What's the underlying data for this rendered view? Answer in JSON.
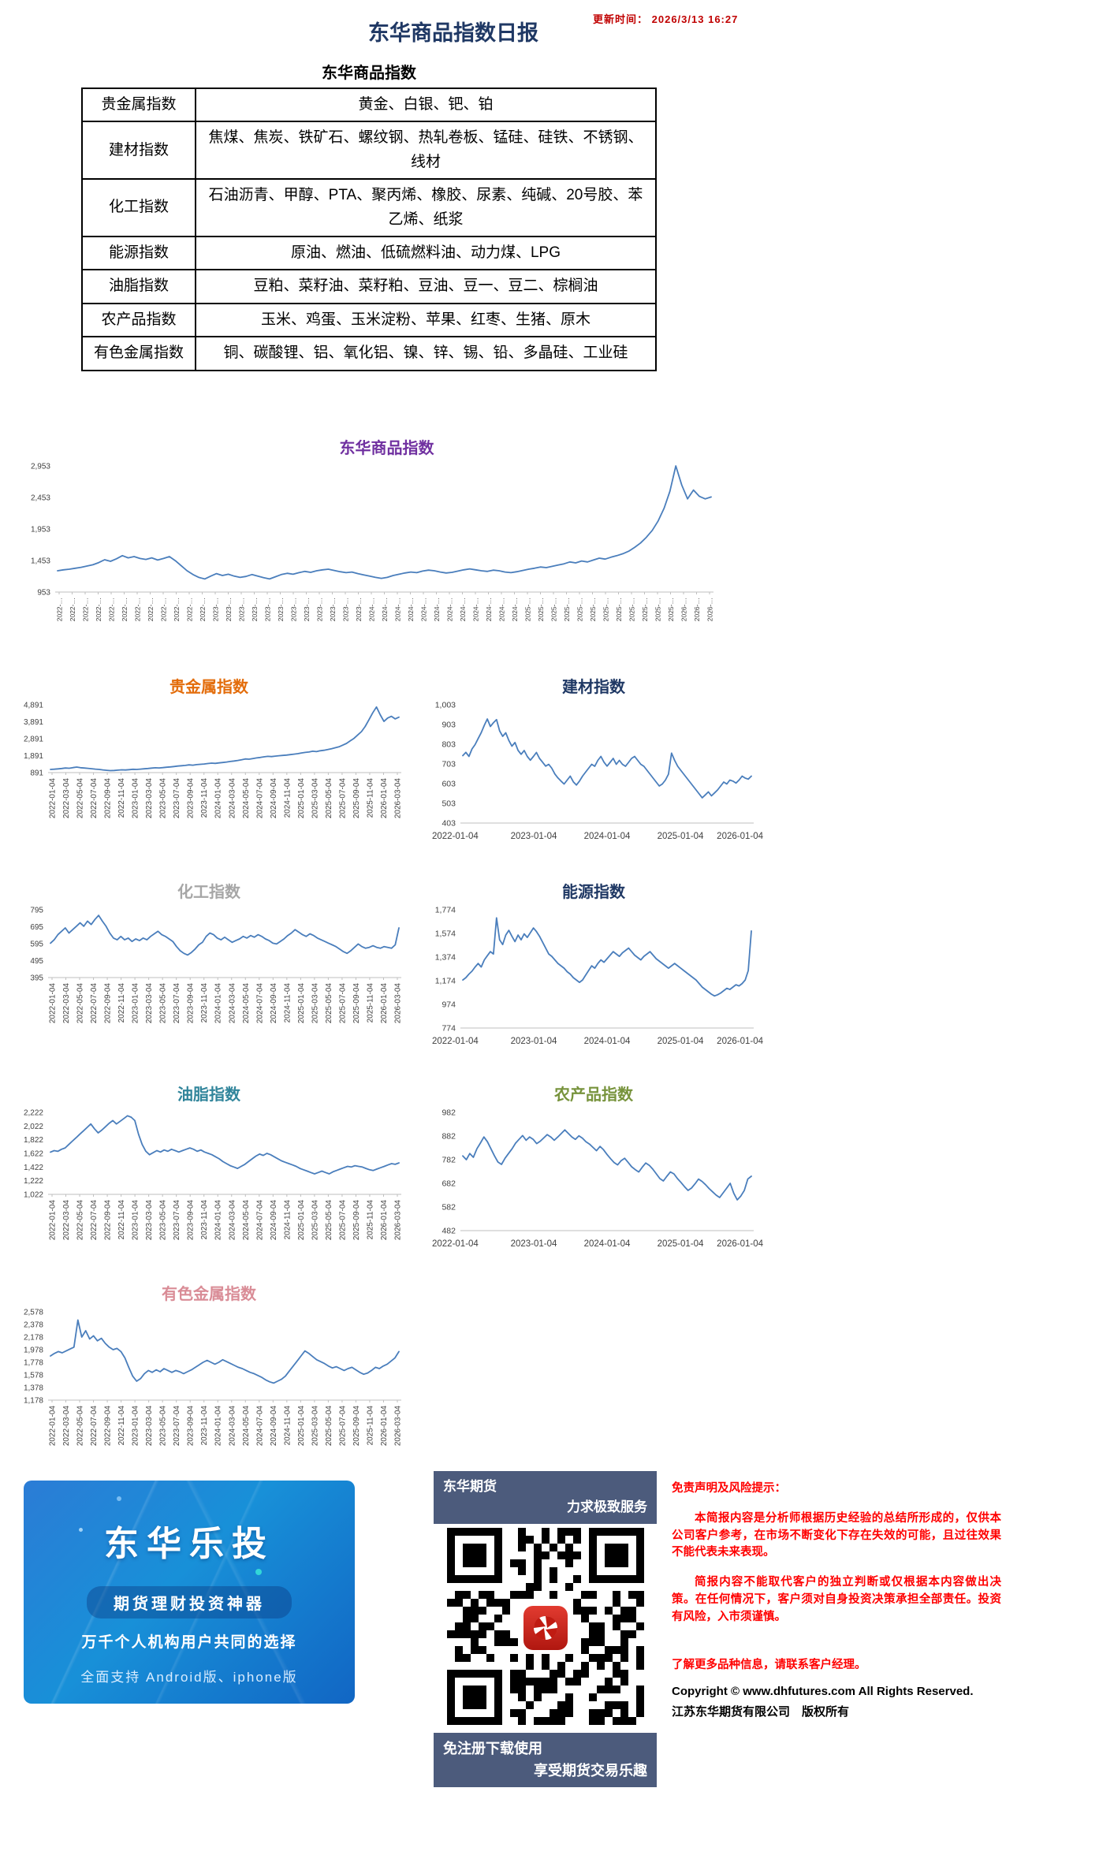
{
  "header": {
    "update_label": "更新时间：",
    "update_value": "2026/3/13 16:27",
    "title": "东华商品指数日报"
  },
  "table": {
    "title": "东华商品指数",
    "rows": [
      {
        "label": "贵金属指数",
        "items": "黄金、白银、钯、铂"
      },
      {
        "label": "建材指数",
        "items": "焦煤、焦炭、铁矿石、螺纹钢、热轧卷板、锰硅、硅铁、不锈钢、线材"
      },
      {
        "label": "化工指数",
        "items": "石油沥青、甲醇、PTA、聚丙烯、橡胶、尿素、纯碱、20号胶、苯乙烯、纸浆"
      },
      {
        "label": "能源指数",
        "items": "原油、燃油、低硫燃料油、动力煤、LPG"
      },
      {
        "label": "油脂指数",
        "items": "豆粕、菜籽油、菜籽粕、豆油、豆一、豆二、棕榈油"
      },
      {
        "label": "农产品指数",
        "items": "玉米、鸡蛋、玉米淀粉、苹果、红枣、生猪、原木"
      },
      {
        "label": "有色金属指数",
        "items": "铜、碳酸锂、铝、氧化铝、镍、锌、锡、铅、多晶硅、工业硅"
      }
    ]
  },
  "x_axis_presets": {
    "main51": [
      "2022-…",
      "2022-…",
      "2022-…",
      "2022-…",
      "2022-…",
      "2022-…",
      "2022-…",
      "2022-…",
      "2022-…",
      "2022-…",
      "2022-…",
      "2022-…",
      "2023-…",
      "2023-…",
      "2023-…",
      "2023-…",
      "2023-…",
      "2023-…",
      "2023-…",
      "2023-…",
      "2023-…",
      "2023-…",
      "2023-…",
      "2023-…",
      "2024-…",
      "2024-…",
      "2024-…",
      "2024-…",
      "2024-…",
      "2024-…",
      "2024-…",
      "2024-…",
      "2024-…",
      "2024-…",
      "2024-…",
      "2024-…",
      "2025-…",
      "2025-…",
      "2025-…",
      "2025-…",
      "2025-…",
      "2025-…",
      "2025-…",
      "2025-…",
      "2025-…",
      "2025-…",
      "2025-…",
      "2025-…",
      "2026-…",
      "2026-…",
      "2026-…"
    ],
    "left26": [
      "2022-01-04",
      "2022-03-04",
      "2022-05-04",
      "2022-07-04",
      "2022-09-04",
      "2022-11-04",
      "2023-01-04",
      "2023-03-04",
      "2023-05-04",
      "2023-07-04",
      "2023-09-04",
      "2023-11-04",
      "2024-01-04",
      "2024-03-04",
      "2024-05-04",
      "2024-07-04",
      "2024-09-04",
      "2024-11-04",
      "2025-01-04",
      "2025-03-04",
      "2025-05-04",
      "2025-07-04",
      "2025-09-04",
      "2025-11-04",
      "2026-01-04",
      "2026-03-04"
    ],
    "right5": [
      "2022-01-04",
      "2023-01-04",
      "2024-01-04",
      "2025-01-04",
      "2026-01-04"
    ]
  },
  "chart_data": [
    {
      "key": "main",
      "type": "line",
      "title": "东华商品指数",
      "title_color": "#7030A0",
      "line_color": "#4a7ebc",
      "xlabel": "",
      "ylabel": "",
      "grid": false,
      "legend": "none",
      "y_ticks": [
        "2,953",
        "2,453",
        "1,953",
        "1,453",
        "953"
      ],
      "y_min": 953,
      "y_max": 2953,
      "x_label_mode": "rotated",
      "x_labels_ref": "main51",
      "values": [
        1290,
        1305,
        1315,
        1330,
        1345,
        1365,
        1385,
        1420,
        1465,
        1440,
        1480,
        1530,
        1495,
        1515,
        1485,
        1470,
        1495,
        1460,
        1485,
        1515,
        1450,
        1370,
        1290,
        1230,
        1185,
        1160,
        1205,
        1245,
        1215,
        1235,
        1205,
        1185,
        1200,
        1230,
        1205,
        1180,
        1160,
        1195,
        1230,
        1250,
        1235,
        1260,
        1280,
        1265,
        1290,
        1305,
        1315,
        1295,
        1275,
        1260,
        1270,
        1245,
        1225,
        1205,
        1185,
        1170,
        1185,
        1215,
        1235,
        1255,
        1270,
        1260,
        1285,
        1300,
        1290,
        1270,
        1255,
        1265,
        1285,
        1305,
        1320,
        1305,
        1290,
        1280,
        1300,
        1290,
        1270,
        1260,
        1275,
        1295,
        1315,
        1330,
        1350,
        1340,
        1360,
        1380,
        1400,
        1430,
        1415,
        1445,
        1430,
        1460,
        1490,
        1475,
        1505,
        1530,
        1560,
        1600,
        1660,
        1730,
        1820,
        1930,
        2080,
        2280,
        2550,
        2953,
        2650,
        2430,
        2570,
        2470,
        2430,
        2460
      ]
    },
    {
      "key": "precious",
      "type": "line",
      "title": "贵金属指数",
      "title_color": "#E36C0A",
      "line_color": "#4a7ebc",
      "y_ticks": [
        "4,891",
        "3,891",
        "2,891",
        "1,891",
        "891"
      ],
      "y_min": 891,
      "y_max": 4891,
      "x_label_mode": "rotated",
      "x_labels_ref": "left26",
      "values": [
        1075,
        1090,
        1110,
        1135,
        1160,
        1145,
        1185,
        1215,
        1180,
        1160,
        1140,
        1120,
        1095,
        1075,
        1050,
        1025,
        1005,
        1015,
        1035,
        1055,
        1045,
        1065,
        1085,
        1075,
        1095,
        1115,
        1135,
        1155,
        1175,
        1165,
        1185,
        1205,
        1225,
        1250,
        1275,
        1295,
        1315,
        1345,
        1330,
        1360,
        1380,
        1400,
        1425,
        1450,
        1435,
        1465,
        1485,
        1515,
        1545,
        1575,
        1605,
        1650,
        1695,
        1680,
        1720,
        1755,
        1785,
        1820,
        1850,
        1835,
        1865,
        1885,
        1905,
        1925,
        1950,
        1980,
        2005,
        2050,
        2080,
        2105,
        2150,
        2130,
        2180,
        2205,
        2250,
        2300,
        2355,
        2410,
        2510,
        2610,
        2760,
        2910,
        3110,
        3310,
        3610,
        4010,
        4410,
        4760,
        4310,
        3910,
        4110,
        4210,
        4060,
        4160
      ]
    },
    {
      "key": "building",
      "type": "line",
      "title": "建材指数",
      "title_color": "#1F3864",
      "line_color": "#4a7ebc",
      "y_ticks": [
        "1,003",
        "903",
        "803",
        "703",
        "603",
        "503",
        "403"
      ],
      "y_min": 403,
      "y_max": 1003,
      "x_label_mode": "horizontal",
      "x_labels_ref": "right5",
      "values": [
        745,
        762,
        741,
        779,
        801,
        832,
        862,
        899,
        931,
        893,
        912,
        928,
        871,
        843,
        861,
        822,
        793,
        812,
        772,
        752,
        771,
        741,
        722,
        741,
        761,
        731,
        712,
        692,
        701,
        681,
        652,
        632,
        616,
        601,
        621,
        641,
        612,
        596,
        616,
        641,
        661,
        681,
        701,
        691,
        721,
        741,
        712,
        692,
        711,
        731,
        701,
        721,
        701,
        691,
        711,
        731,
        741,
        721,
        701,
        691,
        671,
        651,
        631,
        611,
        591,
        601,
        621,
        651,
        758,
        721,
        691,
        671,
        651,
        631,
        611,
        591,
        571,
        551,
        531,
        546,
        561,
        541,
        556,
        571,
        591,
        611,
        601,
        621,
        616,
        606,
        621,
        641,
        631,
        626,
        641
      ]
    },
    {
      "key": "chemical",
      "type": "line",
      "title": "化工指数",
      "title_color": "#A6A6A6",
      "line_color": "#4a7ebc",
      "y_ticks": [
        "795",
        "695",
        "595",
        "495",
        "395"
      ],
      "y_min": 395,
      "y_max": 795,
      "x_label_mode": "rotated",
      "x_labels_ref": "left26",
      "values": [
        598,
        618,
        648,
        668,
        688,
        658,
        678,
        698,
        718,
        698,
        728,
        708,
        738,
        762,
        728,
        698,
        658,
        628,
        618,
        638,
        618,
        628,
        608,
        623,
        613,
        628,
        618,
        638,
        653,
        668,
        648,
        638,
        623,
        608,
        578,
        553,
        538,
        528,
        543,
        563,
        588,
        603,
        638,
        658,
        648,
        628,
        618,
        633,
        618,
        603,
        613,
        623,
        638,
        628,
        643,
        633,
        648,
        638,
        623,
        613,
        598,
        593,
        608,
        623,
        643,
        658,
        678,
        663,
        648,
        638,
        653,
        643,
        628,
        618,
        608,
        598,
        588,
        578,
        563,
        548,
        538,
        553,
        573,
        593,
        578,
        568,
        573,
        583,
        573,
        568,
        578,
        573,
        568,
        588,
        688
      ]
    },
    {
      "key": "energy",
      "type": "line",
      "title": "能源指数",
      "title_color": "#1F3864",
      "line_color": "#4a7ebc",
      "y_ticks": [
        "1,774",
        "1,574",
        "1,374",
        "1,174",
        "974",
        "774"
      ],
      "y_min": 774,
      "y_max": 1774,
      "x_label_mode": "horizontal",
      "x_labels_ref": "right5",
      "values": [
        1180,
        1200,
        1230,
        1255,
        1290,
        1320,
        1290,
        1350,
        1385,
        1420,
        1400,
        1705,
        1520,
        1480,
        1560,
        1600,
        1550,
        1505,
        1560,
        1520,
        1570,
        1540,
        1580,
        1620,
        1590,
        1550,
        1500,
        1450,
        1400,
        1380,
        1350,
        1320,
        1300,
        1280,
        1250,
        1230,
        1200,
        1180,
        1160,
        1180,
        1220,
        1260,
        1300,
        1280,
        1320,
        1350,
        1330,
        1360,
        1390,
        1420,
        1400,
        1380,
        1410,
        1430,
        1450,
        1420,
        1390,
        1370,
        1350,
        1380,
        1400,
        1420,
        1390,
        1360,
        1340,
        1320,
        1300,
        1280,
        1300,
        1320,
        1300,
        1280,
        1260,
        1240,
        1220,
        1200,
        1180,
        1150,
        1120,
        1100,
        1080,
        1060,
        1045,
        1055,
        1070,
        1090,
        1110,
        1100,
        1120,
        1140,
        1130,
        1150,
        1180,
        1260,
        1595
      ]
    },
    {
      "key": "oils",
      "type": "line",
      "title": "油脂指数",
      "title_color": "#31859B",
      "line_color": "#4a7ebc",
      "y_ticks": [
        "2,222",
        "2,022",
        "1,822",
        "1,622",
        "1,422",
        "1,222",
        "1,022"
      ],
      "y_min": 1022,
      "y_max": 2222,
      "x_label_mode": "rotated",
      "x_labels_ref": "left26",
      "values": [
        1640,
        1662,
        1652,
        1682,
        1702,
        1752,
        1802,
        1852,
        1902,
        1952,
        2002,
        2052,
        1982,
        1922,
        1962,
        2012,
        2062,
        2102,
        2052,
        2092,
        2132,
        2172,
        2152,
        2102,
        1902,
        1752,
        1652,
        1602,
        1632,
        1662,
        1642,
        1672,
        1652,
        1682,
        1662,
        1642,
        1662,
        1682,
        1702,
        1682,
        1652,
        1672,
        1642,
        1622,
        1602,
        1572,
        1542,
        1502,
        1472,
        1442,
        1422,
        1402,
        1432,
        1462,
        1502,
        1542,
        1582,
        1612,
        1592,
        1622,
        1602,
        1572,
        1542,
        1512,
        1492,
        1472,
        1452,
        1432,
        1402,
        1382,
        1362,
        1342,
        1322,
        1342,
        1362,
        1342,
        1322,
        1352,
        1372,
        1392,
        1412,
        1432,
        1422,
        1442,
        1432,
        1422,
        1402,
        1382,
        1372,
        1392,
        1412,
        1432,
        1452,
        1472,
        1462,
        1482
      ]
    },
    {
      "key": "agri",
      "type": "line",
      "title": "农产品指数",
      "title_color": "#77933C",
      "line_color": "#4a7ebc",
      "y_ticks": [
        "982",
        "882",
        "782",
        "682",
        "582",
        "482"
      ],
      "y_min": 482,
      "y_max": 982,
      "x_label_mode": "horizontal",
      "x_labels_ref": "right5",
      "values": [
        798,
        782,
        808,
        792,
        828,
        852,
        878,
        858,
        828,
        798,
        772,
        762,
        788,
        808,
        828,
        852,
        868,
        884,
        864,
        878,
        868,
        850,
        860,
        874,
        888,
        878,
        864,
        878,
        893,
        908,
        893,
        878,
        868,
        883,
        873,
        858,
        848,
        834,
        820,
        838,
        824,
        804,
        786,
        770,
        760,
        778,
        788,
        770,
        752,
        740,
        730,
        750,
        768,
        758,
        742,
        722,
        702,
        692,
        712,
        730,
        722,
        702,
        686,
        668,
        652,
        662,
        680,
        700,
        690,
        676,
        660,
        646,
        632,
        622,
        642,
        662,
        682,
        640,
        612,
        628,
        652,
        700,
        712
      ]
    },
    {
      "key": "nonferrous",
      "type": "line",
      "title": "有色金属指数",
      "title_color": "#D98C96",
      "line_color": "#4a7ebc",
      "y_ticks": [
        "2,578",
        "2,378",
        "2,178",
        "1,978",
        "1,778",
        "1,578",
        "1,378",
        "1,178"
      ],
      "y_min": 1178,
      "y_max": 2578,
      "x_label_mode": "rotated",
      "x_labels_ref": "left26",
      "values": [
        1878,
        1918,
        1948,
        1928,
        1958,
        1988,
        2018,
        2448,
        2178,
        2278,
        2148,
        2198,
        2118,
        2158,
        2078,
        2018,
        1978,
        1998,
        1948,
        1848,
        1698,
        1558,
        1478,
        1518,
        1598,
        1648,
        1618,
        1658,
        1628,
        1678,
        1648,
        1618,
        1648,
        1628,
        1598,
        1628,
        1658,
        1698,
        1738,
        1778,
        1808,
        1778,
        1748,
        1778,
        1818,
        1788,
        1758,
        1728,
        1698,
        1678,
        1648,
        1618,
        1598,
        1568,
        1538,
        1498,
        1468,
        1448,
        1478,
        1508,
        1558,
        1638,
        1718,
        1798,
        1878,
        1958,
        1918,
        1868,
        1818,
        1788,
        1758,
        1718,
        1688,
        1708,
        1678,
        1648,
        1678,
        1698,
        1658,
        1618,
        1588,
        1608,
        1648,
        1698,
        1678,
        1718,
        1748,
        1798,
        1848,
        1948
      ]
    }
  ],
  "bottom": {
    "banner": {
      "app_name": "东华乐投",
      "tagline": "期货理财投资神器",
      "subtitle": "万千个人机构用户共同的选择",
      "support": "全面支持 Android版、iphone版"
    },
    "qr": {
      "header_line1": "东华期货",
      "header_line2": "力求极致服务",
      "footer_line1": "免注册下载使用",
      "footer_line2": "享受期货交易乐趣"
    },
    "disclaimer": {
      "title": "免责声明及风险提示：",
      "para1": "本简报内容是分析师根据历史经验的总结所形成的，仅供本公司客户参考，在市场不断变化下存在失效的可能，且过往效果不能代表未来表现。",
      "para2": "简报内容不能取代客户的独立判断或仅根据本内容做出决策。在任何情况下，客户须对自身投资决策承担全部责任。投资有风险，入市须谨慎。",
      "para3": "了解更多品种信息，请联系客户经理。"
    },
    "copyright": {
      "line1": "Copyright © www.dhfutures.com  All Rights Reserved.",
      "line2": "江苏东华期货有限公司　版权所有"
    }
  }
}
